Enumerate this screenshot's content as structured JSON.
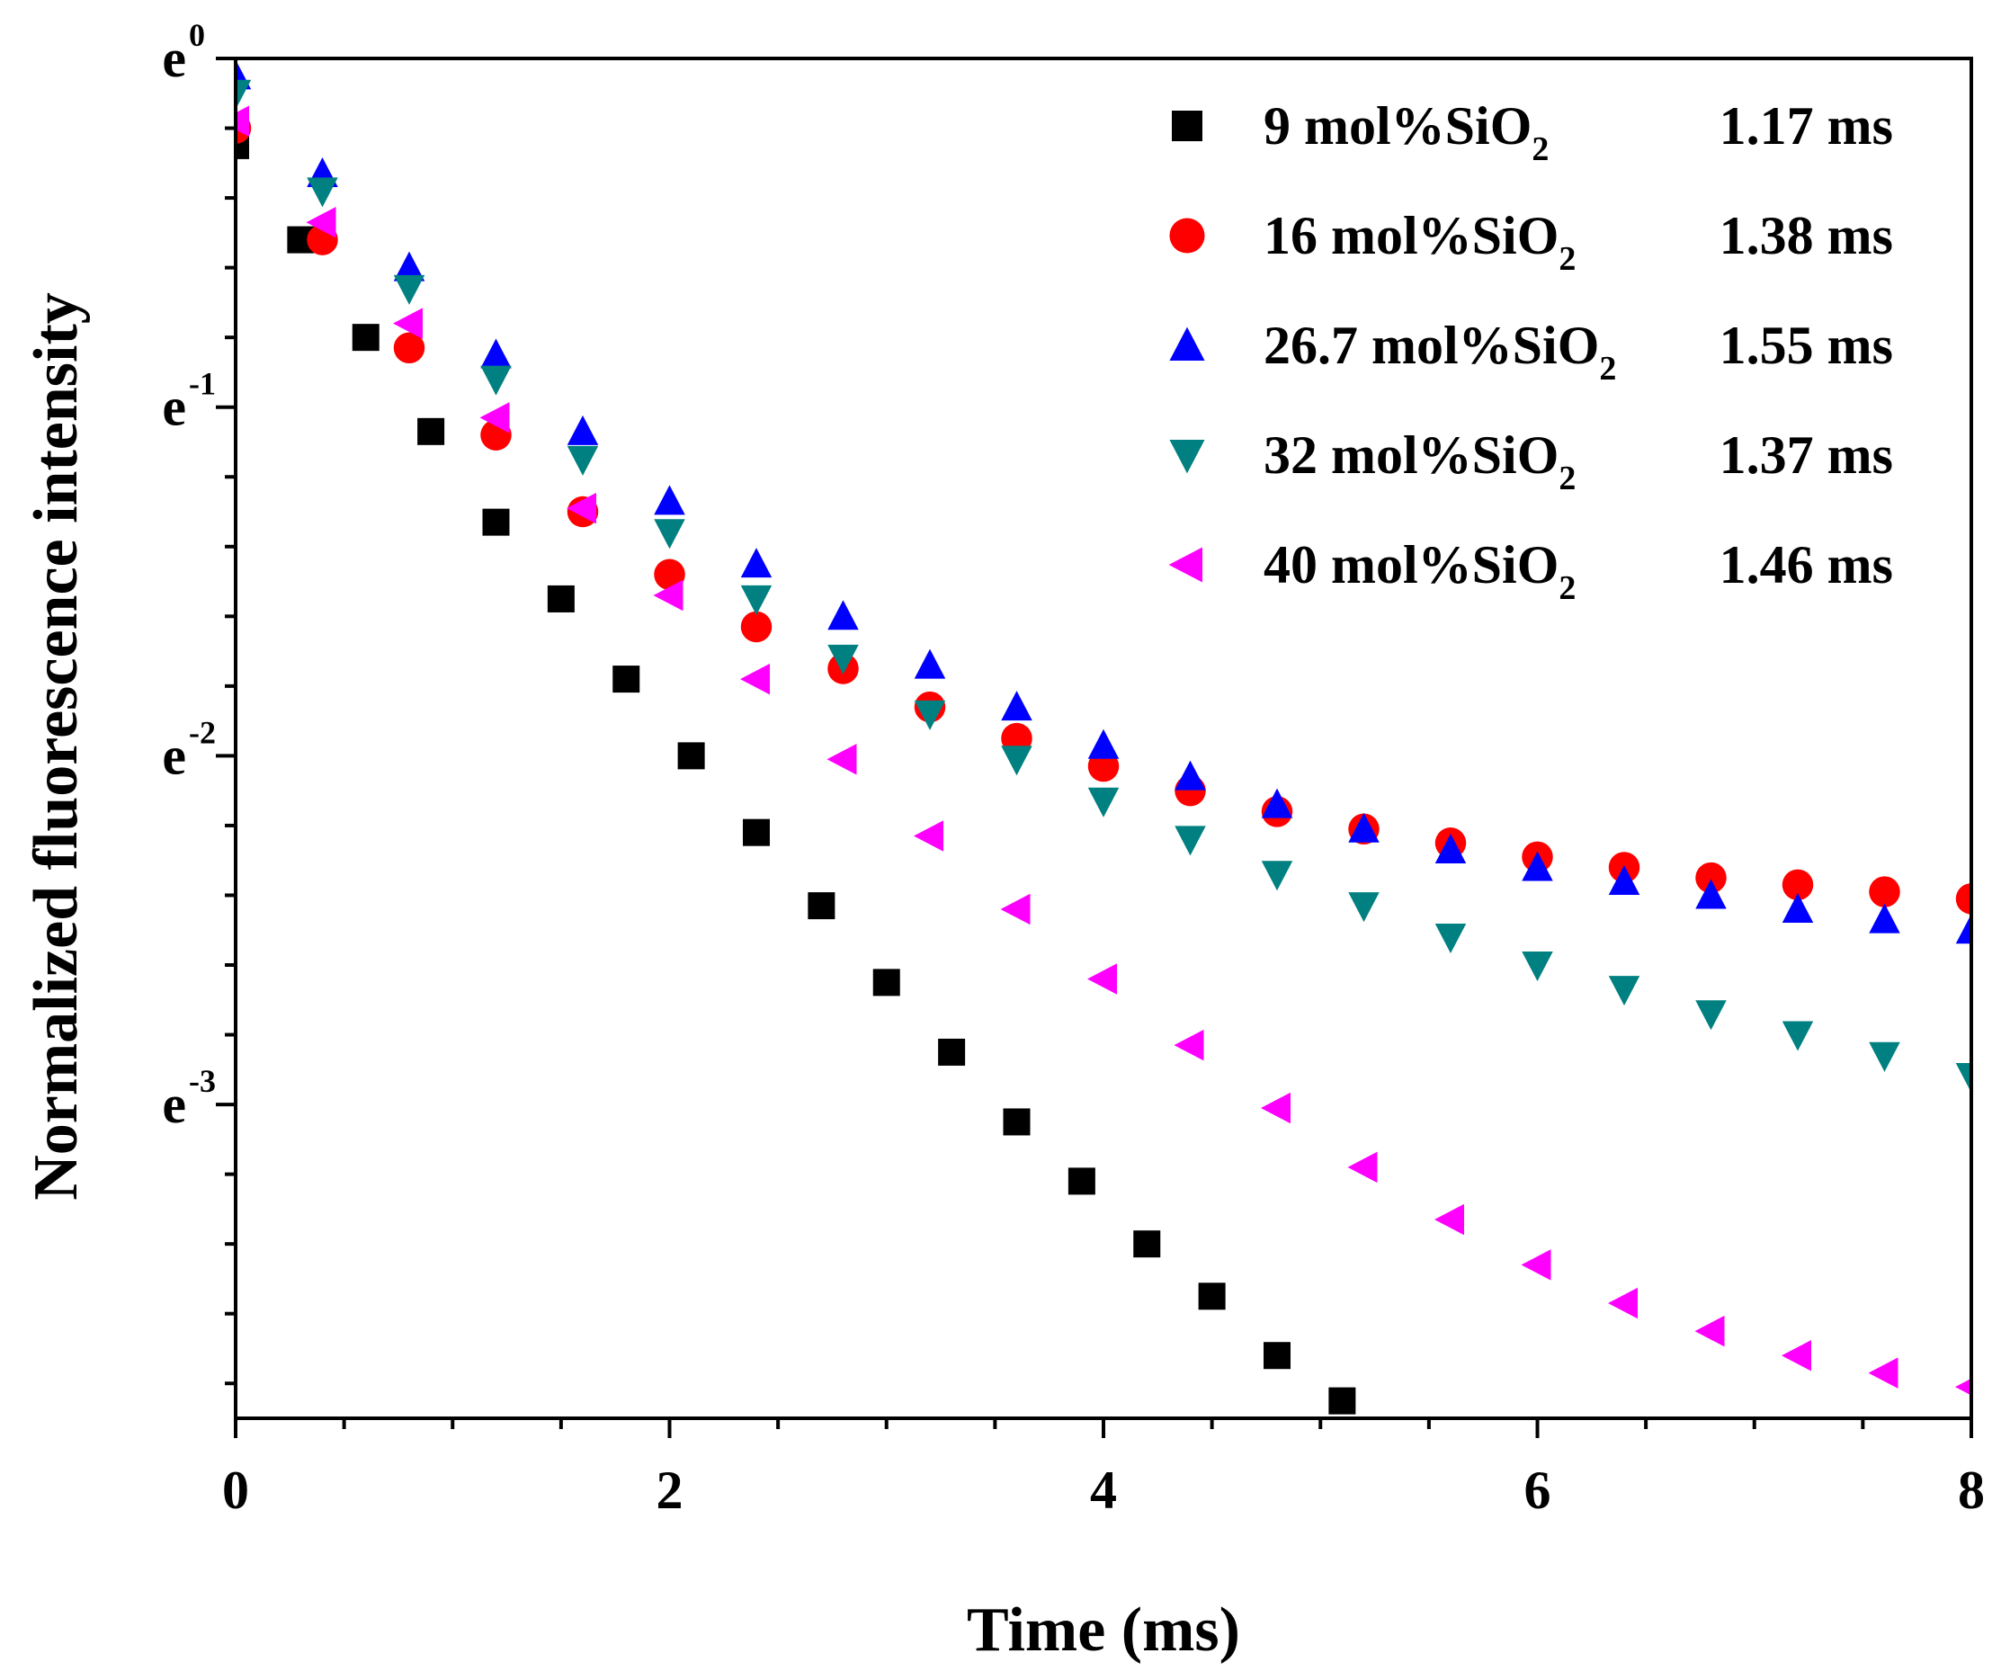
{
  "chart_data": {
    "type": "scatter",
    "xlabel": "Time (ms)",
    "ylabel": "Normalized fluorescence intensity",
    "xlim": [
      0,
      8
    ],
    "ylim_ln": [
      -3.9,
      0
    ],
    "y_scale": "natural-log",
    "x_ticks": [
      {
        "value": 0,
        "label": "0"
      },
      {
        "value": 2,
        "label": "2"
      },
      {
        "value": 4,
        "label": "4"
      },
      {
        "value": 6,
        "label": "6"
      },
      {
        "value": 8,
        "label": "8"
      }
    ],
    "y_ticks": [
      {
        "value": 0,
        "base": "e",
        "exp": "0"
      },
      {
        "value": -1,
        "base": "e",
        "exp": "-1"
      },
      {
        "value": -2,
        "base": "e",
        "exp": "-2"
      },
      {
        "value": -3,
        "base": "e",
        "exp": "-3"
      }
    ],
    "legend_position": "top-right",
    "series": [
      {
        "name": "9 mol%SiO2",
        "name_main": "9 mol%SiO",
        "name_sub": "2",
        "lifetime": "1.17 ms",
        "marker": "square",
        "color": "#000000",
        "x": [
          0.0,
          0.3,
          0.6,
          0.9,
          1.2,
          1.5,
          1.8,
          2.1,
          2.4,
          2.7,
          3.0,
          3.3,
          3.6,
          3.9,
          4.2,
          4.5,
          4.8,
          5.1
        ],
        "ln_y": [
          -0.25,
          -0.52,
          -0.8,
          -1.07,
          -1.33,
          -1.55,
          -1.78,
          -2.0,
          -2.22,
          -2.43,
          -2.65,
          -2.85,
          -3.05,
          -3.22,
          -3.4,
          -3.55,
          -3.72,
          -3.85
        ]
      },
      {
        "name": "16 mol%SiO2",
        "name_main": "16 mol%SiO",
        "name_sub": "2",
        "lifetime": "1.38 ms",
        "marker": "circle",
        "color": "#ff0000",
        "x": [
          0.0,
          0.4,
          0.8,
          1.2,
          1.6,
          2.0,
          2.4,
          2.8,
          3.2,
          3.6,
          4.0,
          4.4,
          4.8,
          5.2,
          5.6,
          6.0,
          6.4,
          6.8,
          7.2,
          7.6,
          8.0
        ],
        "ln_y": [
          -0.2,
          -0.52,
          -0.83,
          -1.08,
          -1.3,
          -1.48,
          -1.63,
          -1.75,
          -1.86,
          -1.95,
          -2.03,
          -2.1,
          -2.16,
          -2.21,
          -2.25,
          -2.29,
          -2.32,
          -2.35,
          -2.37,
          -2.39,
          -2.41
        ]
      },
      {
        "name": "26.7 mol%SiO2",
        "name_main": "26.7 mol%SiO",
        "name_sub": "2",
        "lifetime": "1.55 ms",
        "marker": "triangle-up",
        "color": "#0000ff",
        "x": [
          0.0,
          0.4,
          0.8,
          1.2,
          1.6,
          2.0,
          2.4,
          2.8,
          3.2,
          3.6,
          4.0,
          4.4,
          4.8,
          5.2,
          5.6,
          6.0,
          6.4,
          6.8,
          7.2,
          7.6,
          8.0
        ],
        "ln_y": [
          -0.05,
          -0.33,
          -0.6,
          -0.85,
          -1.07,
          -1.27,
          -1.45,
          -1.6,
          -1.74,
          -1.86,
          -1.97,
          -2.06,
          -2.14,
          -2.21,
          -2.27,
          -2.32,
          -2.36,
          -2.4,
          -2.44,
          -2.47,
          -2.5
        ]
      },
      {
        "name": "32 mol%SiO2",
        "name_main": "32 mol%SiO",
        "name_sub": "2",
        "lifetime": "1.37 ms",
        "marker": "triangle-down",
        "color": "#008080",
        "x": [
          0.0,
          0.4,
          0.8,
          1.2,
          1.6,
          2.0,
          2.4,
          2.8,
          3.2,
          3.6,
          4.0,
          4.4,
          4.8,
          5.2,
          5.6,
          6.0,
          6.4,
          6.8,
          7.2,
          7.6,
          8.0
        ],
        "ln_y": [
          -0.1,
          -0.38,
          -0.66,
          -0.92,
          -1.15,
          -1.36,
          -1.55,
          -1.72,
          -1.88,
          -2.01,
          -2.13,
          -2.24,
          -2.34,
          -2.43,
          -2.52,
          -2.6,
          -2.67,
          -2.74,
          -2.8,
          -2.86,
          -2.92
        ]
      },
      {
        "name": "40 mol%SiO2",
        "name_main": "40 mol%SiO",
        "name_sub": "2",
        "lifetime": "1.46 ms",
        "marker": "triangle-left",
        "color": "#ff00ff",
        "x": [
          0.0,
          0.4,
          0.8,
          1.2,
          1.6,
          2.0,
          2.4,
          2.8,
          3.2,
          3.6,
          4.0,
          4.4,
          4.8,
          5.2,
          5.6,
          6.0,
          6.4,
          6.8,
          7.2,
          7.6,
          8.0
        ],
        "ln_y": [
          -0.18,
          -0.47,
          -0.76,
          -1.03,
          -1.29,
          -1.54,
          -1.78,
          -2.01,
          -2.23,
          -2.44,
          -2.64,
          -2.83,
          -3.01,
          -3.18,
          -3.33,
          -3.46,
          -3.57,
          -3.65,
          -3.72,
          -3.77,
          -3.81
        ]
      }
    ]
  }
}
